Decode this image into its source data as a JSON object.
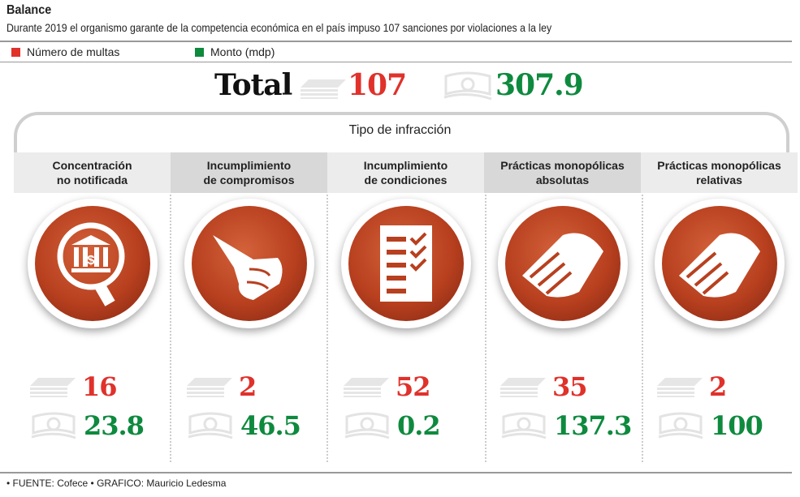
{
  "title": "Balance",
  "subtitle": "Durante 2019 el organismo garante de la competencia económica en el país impuso 107 sanciones por violaciones a la ley",
  "legend": [
    {
      "label": "Número de multas",
      "color": "#e0312b"
    },
    {
      "label": "Monto (mdp)",
      "color": "#0e8a3e"
    }
  ],
  "total": {
    "label": "Total",
    "count": "107",
    "amount": "307.9"
  },
  "group_label": "Tipo de infracción",
  "footer": "• FUENTE: Cofece • GRAFICO: Mauricio Ledesma",
  "chart_data": {
    "type": "table",
    "title": "Balance",
    "categories": [
      "Concentración no notificada",
      "Incumplimiento de compromisos",
      "Incumplimiento de condiciones",
      "Prácticas monopólicas absolutas",
      "Prácticas monopólicas relativas"
    ],
    "series": [
      {
        "name": "Número de multas",
        "values": [
          16,
          2,
          52,
          35,
          2
        ]
      },
      {
        "name": "Monto (mdp)",
        "values": [
          23.8,
          46.5,
          0.2,
          137.3,
          100
        ]
      }
    ]
  },
  "columns": [
    {
      "line1": "Concentración",
      "line2": "no notificada",
      "icon": "bank-magnifier-icon",
      "count": "16",
      "amount": "23.8"
    },
    {
      "line1": "Incumplimiento",
      "line2": "de compromisos",
      "icon": "pointing-hand-icon",
      "count": "2",
      "amount": "46.5"
    },
    {
      "line1": "Incumplimiento",
      "line2": "de condiciones",
      "icon": "checklist-icon",
      "count": "52",
      "amount": "0.2"
    },
    {
      "line1": "Prácticas monopólicas",
      "line2": "absolutas",
      "icon": "handshake-icon",
      "count": "35",
      "amount": "137.3"
    },
    {
      "line1": "Prácticas monopólicas",
      "line2": "relativas",
      "icon": "handshake-icon",
      "count": "2",
      "amount": "100"
    }
  ]
}
